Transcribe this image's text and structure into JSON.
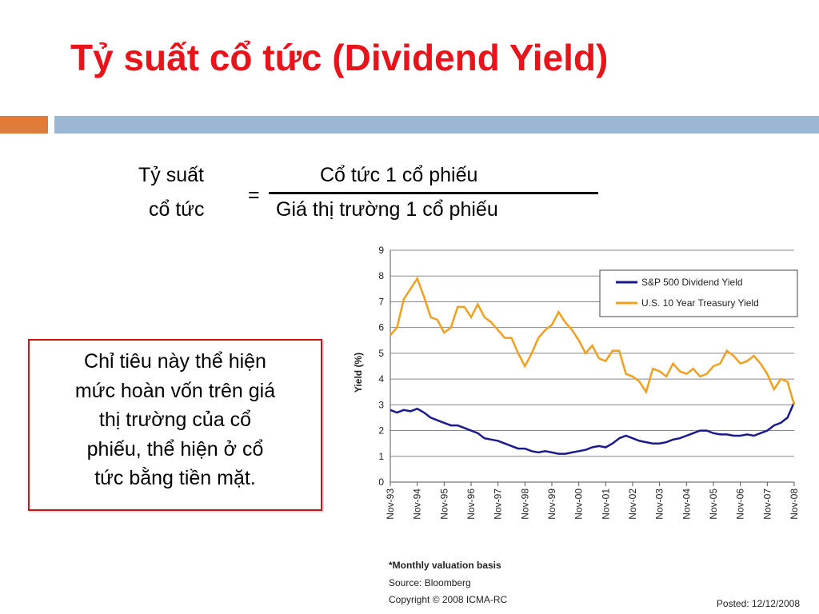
{
  "slide": {
    "title": "Tỷ suất cổ tức (Dividend Yield)",
    "formula": {
      "lhs": [
        "Tỷ suất",
        "cổ tức"
      ],
      "equals": "=",
      "numerator": "Cổ tức 1 cổ phiếu",
      "denominator": "Giá thị trường 1 cổ phiếu"
    },
    "box_lines": [
      "Chỉ tiêu này thể hiện",
      "mức hoàn vốn trên giá",
      "thị trường của cổ",
      "phiếu, thể hiện ở cổ",
      "tức bằng tiền mặt."
    ],
    "notes": [
      "*Monthly valuation basis",
      "Source:  Bloomberg",
      "Copyright © 2008 ICMA-RC"
    ],
    "posted": "Posted: 12/12/2008"
  },
  "chart_data": {
    "type": "line",
    "y_label": "Yield (%)",
    "categories": [
      "Nov-93",
      null,
      null,
      null,
      "Nov-94",
      null,
      null,
      null,
      "Nov-95",
      null,
      null,
      null,
      "Nov-96",
      null,
      null,
      null,
      "Nov-97",
      null,
      null,
      null,
      "Nov-98",
      null,
      null,
      null,
      "Nov-99",
      null,
      null,
      null,
      "Nov-00",
      null,
      null,
      null,
      "Nov-01",
      null,
      null,
      null,
      "Nov-02",
      null,
      null,
      null,
      "Nov-03",
      null,
      null,
      null,
      "Nov-04",
      null,
      null,
      null,
      "Nov-05",
      null,
      null,
      null,
      "Nov-06",
      null,
      null,
      null,
      "Nov-07",
      null,
      null,
      null,
      "Nov-08"
    ],
    "series": [
      {
        "name": "S&P 500 Dividend Yield",
        "color": "#1a1a8c",
        "values": [
          2.8,
          2.7,
          2.8,
          2.75,
          2.85,
          2.7,
          2.5,
          2.4,
          2.3,
          2.2,
          2.2,
          2.1,
          2.0,
          1.9,
          1.7,
          1.65,
          1.6,
          1.5,
          1.4,
          1.3,
          1.3,
          1.2,
          1.15,
          1.2,
          1.15,
          1.1,
          1.1,
          1.15,
          1.2,
          1.25,
          1.35,
          1.4,
          1.35,
          1.5,
          1.7,
          1.8,
          1.7,
          1.6,
          1.55,
          1.5,
          1.5,
          1.55,
          1.65,
          1.7,
          1.8,
          1.9,
          2.0,
          2.0,
          1.9,
          1.85,
          1.85,
          1.8,
          1.8,
          1.85,
          1.8,
          1.9,
          2.0,
          2.2,
          2.3,
          2.5,
          3.1
        ]
      },
      {
        "name": "U.S. 10 Year Treasury Yield",
        "color": "#f0a020",
        "values": [
          5.7,
          6.0,
          7.1,
          7.5,
          7.9,
          7.2,
          6.4,
          6.3,
          5.8,
          6.0,
          6.8,
          6.8,
          6.4,
          6.9,
          6.4,
          6.2,
          5.9,
          5.6,
          5.6,
          5.0,
          4.5,
          5.0,
          5.6,
          5.9,
          6.1,
          6.6,
          6.2,
          5.9,
          5.5,
          5.0,
          5.3,
          4.8,
          4.7,
          5.1,
          5.1,
          4.2,
          4.1,
          3.9,
          3.5,
          4.4,
          4.3,
          4.1,
          4.6,
          4.3,
          4.2,
          4.4,
          4.1,
          4.2,
          4.5,
          4.6,
          5.1,
          4.9,
          4.6,
          4.7,
          4.9,
          4.6,
          4.2,
          3.6,
          4.0,
          3.9,
          3.0
        ]
      }
    ],
    "ylim": [
      0,
      9
    ],
    "yticks": [
      0,
      1,
      2,
      3,
      4,
      5,
      6,
      7,
      8,
      9
    ],
    "grid": true
  }
}
